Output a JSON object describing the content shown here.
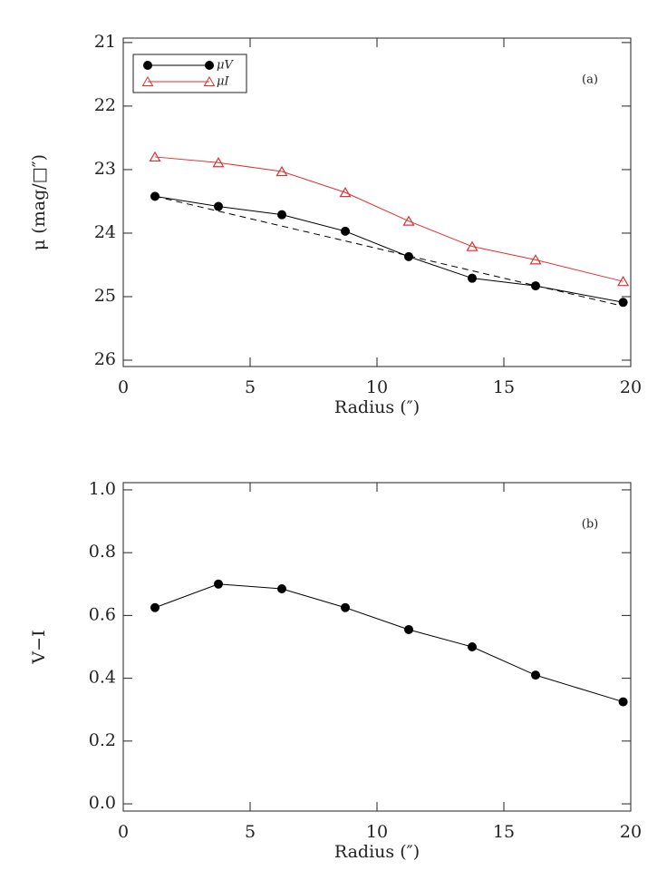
{
  "chart_data": [
    {
      "type": "line",
      "annotation": "(a)",
      "xlabel": "Radius (″)",
      "ylabel": "μ (mag/□″)",
      "x": [
        1.25,
        3.75,
        6.25,
        8.75,
        11.25,
        13.75,
        16.25,
        19.7
      ],
      "series": [
        {
          "name": "μV",
          "color": "#000000",
          "marker": "circle",
          "values": [
            23.42,
            23.58,
            23.71,
            23.97,
            24.37,
            24.71,
            24.83,
            25.09
          ]
        },
        {
          "name": "μI",
          "color": "#e03030",
          "marker": "triangle",
          "values": [
            22.8,
            22.89,
            23.03,
            23.36,
            23.81,
            24.21,
            24.42,
            24.76
          ]
        }
      ],
      "fit": {
        "x": [
          1.25,
          19.7
        ],
        "values": [
          23.42,
          25.15
        ],
        "color": "#000000",
        "dashed": true
      },
      "xlim": [
        0,
        20
      ],
      "xticks": [
        0,
        5,
        10,
        15,
        20
      ],
      "ylim": [
        26.1,
        20.93
      ],
      "yticks": [
        21,
        22,
        23,
        24,
        25,
        26
      ],
      "legend": "upper left"
    },
    {
      "type": "line",
      "annotation": "(b)",
      "xlabel": "Radius (″)",
      "ylabel": "V−I",
      "x": [
        1.25,
        3.75,
        6.25,
        8.75,
        11.25,
        13.75,
        16.25,
        19.7
      ],
      "series": [
        {
          "color": "#000000",
          "marker": "circle",
          "values": [
            0.625,
            0.7,
            0.685,
            0.625,
            0.555,
            0.5,
            0.41,
            0.325
          ]
        }
      ],
      "xlim": [
        0,
        20
      ],
      "xticks": [
        0,
        5,
        10,
        15,
        20
      ],
      "ylim": [
        -0.023,
        1.023
      ],
      "yticks": [
        {
          "value": 0,
          "label": "0.0"
        },
        0.2,
        0.4,
        0.6,
        0.8,
        {
          "value": 1,
          "label": "1.0"
        }
      ]
    }
  ]
}
